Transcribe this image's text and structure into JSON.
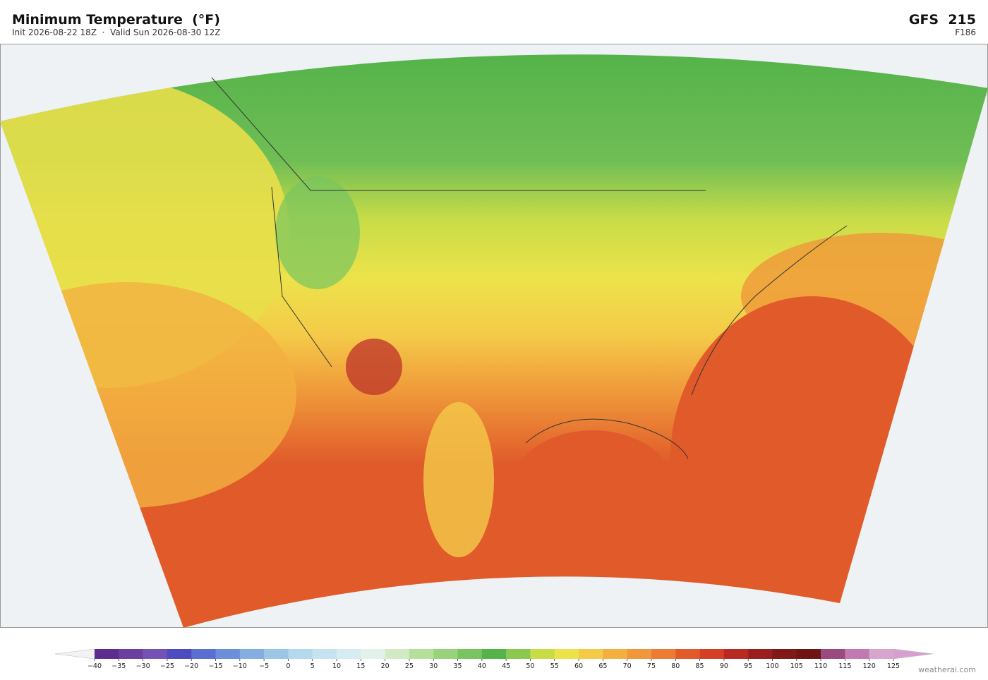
{
  "header": {
    "title": "Minimum Temperature  (°F)",
    "subtitle": "Init 2026-08-22 18Z  ·  Valid Sun 2026-08-30 12Z",
    "model": "GFS  215",
    "forecast_hour": "F186"
  },
  "colorbar": {
    "ticks": [
      {
        "value": -40,
        "label": "−40"
      },
      {
        "value": -35,
        "label": "−35"
      },
      {
        "value": -30,
        "label": "−30"
      },
      {
        "value": -25,
        "label": "−25"
      },
      {
        "value": -20,
        "label": "−20"
      },
      {
        "value": -15,
        "label": "−15"
      },
      {
        "value": -10,
        "label": "−10"
      },
      {
        "value": -5,
        "label": "−5"
      },
      0,
      5,
      10,
      15,
      20,
      25,
      30,
      35,
      40,
      45,
      50,
      55,
      60,
      65,
      70,
      75,
      80,
      85,
      90,
      95,
      100,
      105,
      110,
      115,
      120,
      125
    ],
    "colors": [
      "#5b2d8e",
      "#6a3fa0",
      "#7453b5",
      "#4c4cc0",
      "#5a6fd0",
      "#6b8fd8",
      "#85aee0",
      "#9cc6e6",
      "#b4d8ee",
      "#c6e4f0",
      "#d6ecf2",
      "#e2f2ea",
      "#d0ebc4",
      "#b6e09a",
      "#98d27a",
      "#78c460",
      "#55b34a",
      "#8cc850",
      "#c8dc48",
      "#ece34a",
      "#f4ca48",
      "#f3b040",
      "#ef973a",
      "#eb7b35",
      "#e05a2a",
      "#d34026",
      "#b82a22",
      "#9a1e1e",
      "#801818",
      "#6e1414",
      "#9b4a7e",
      "#c07aaf",
      "#d8a6cc"
    ],
    "under_color": "#f2f2f2",
    "over_color": "#d79ed0"
  },
  "footer": {
    "credit": "weatherai.com"
  }
}
